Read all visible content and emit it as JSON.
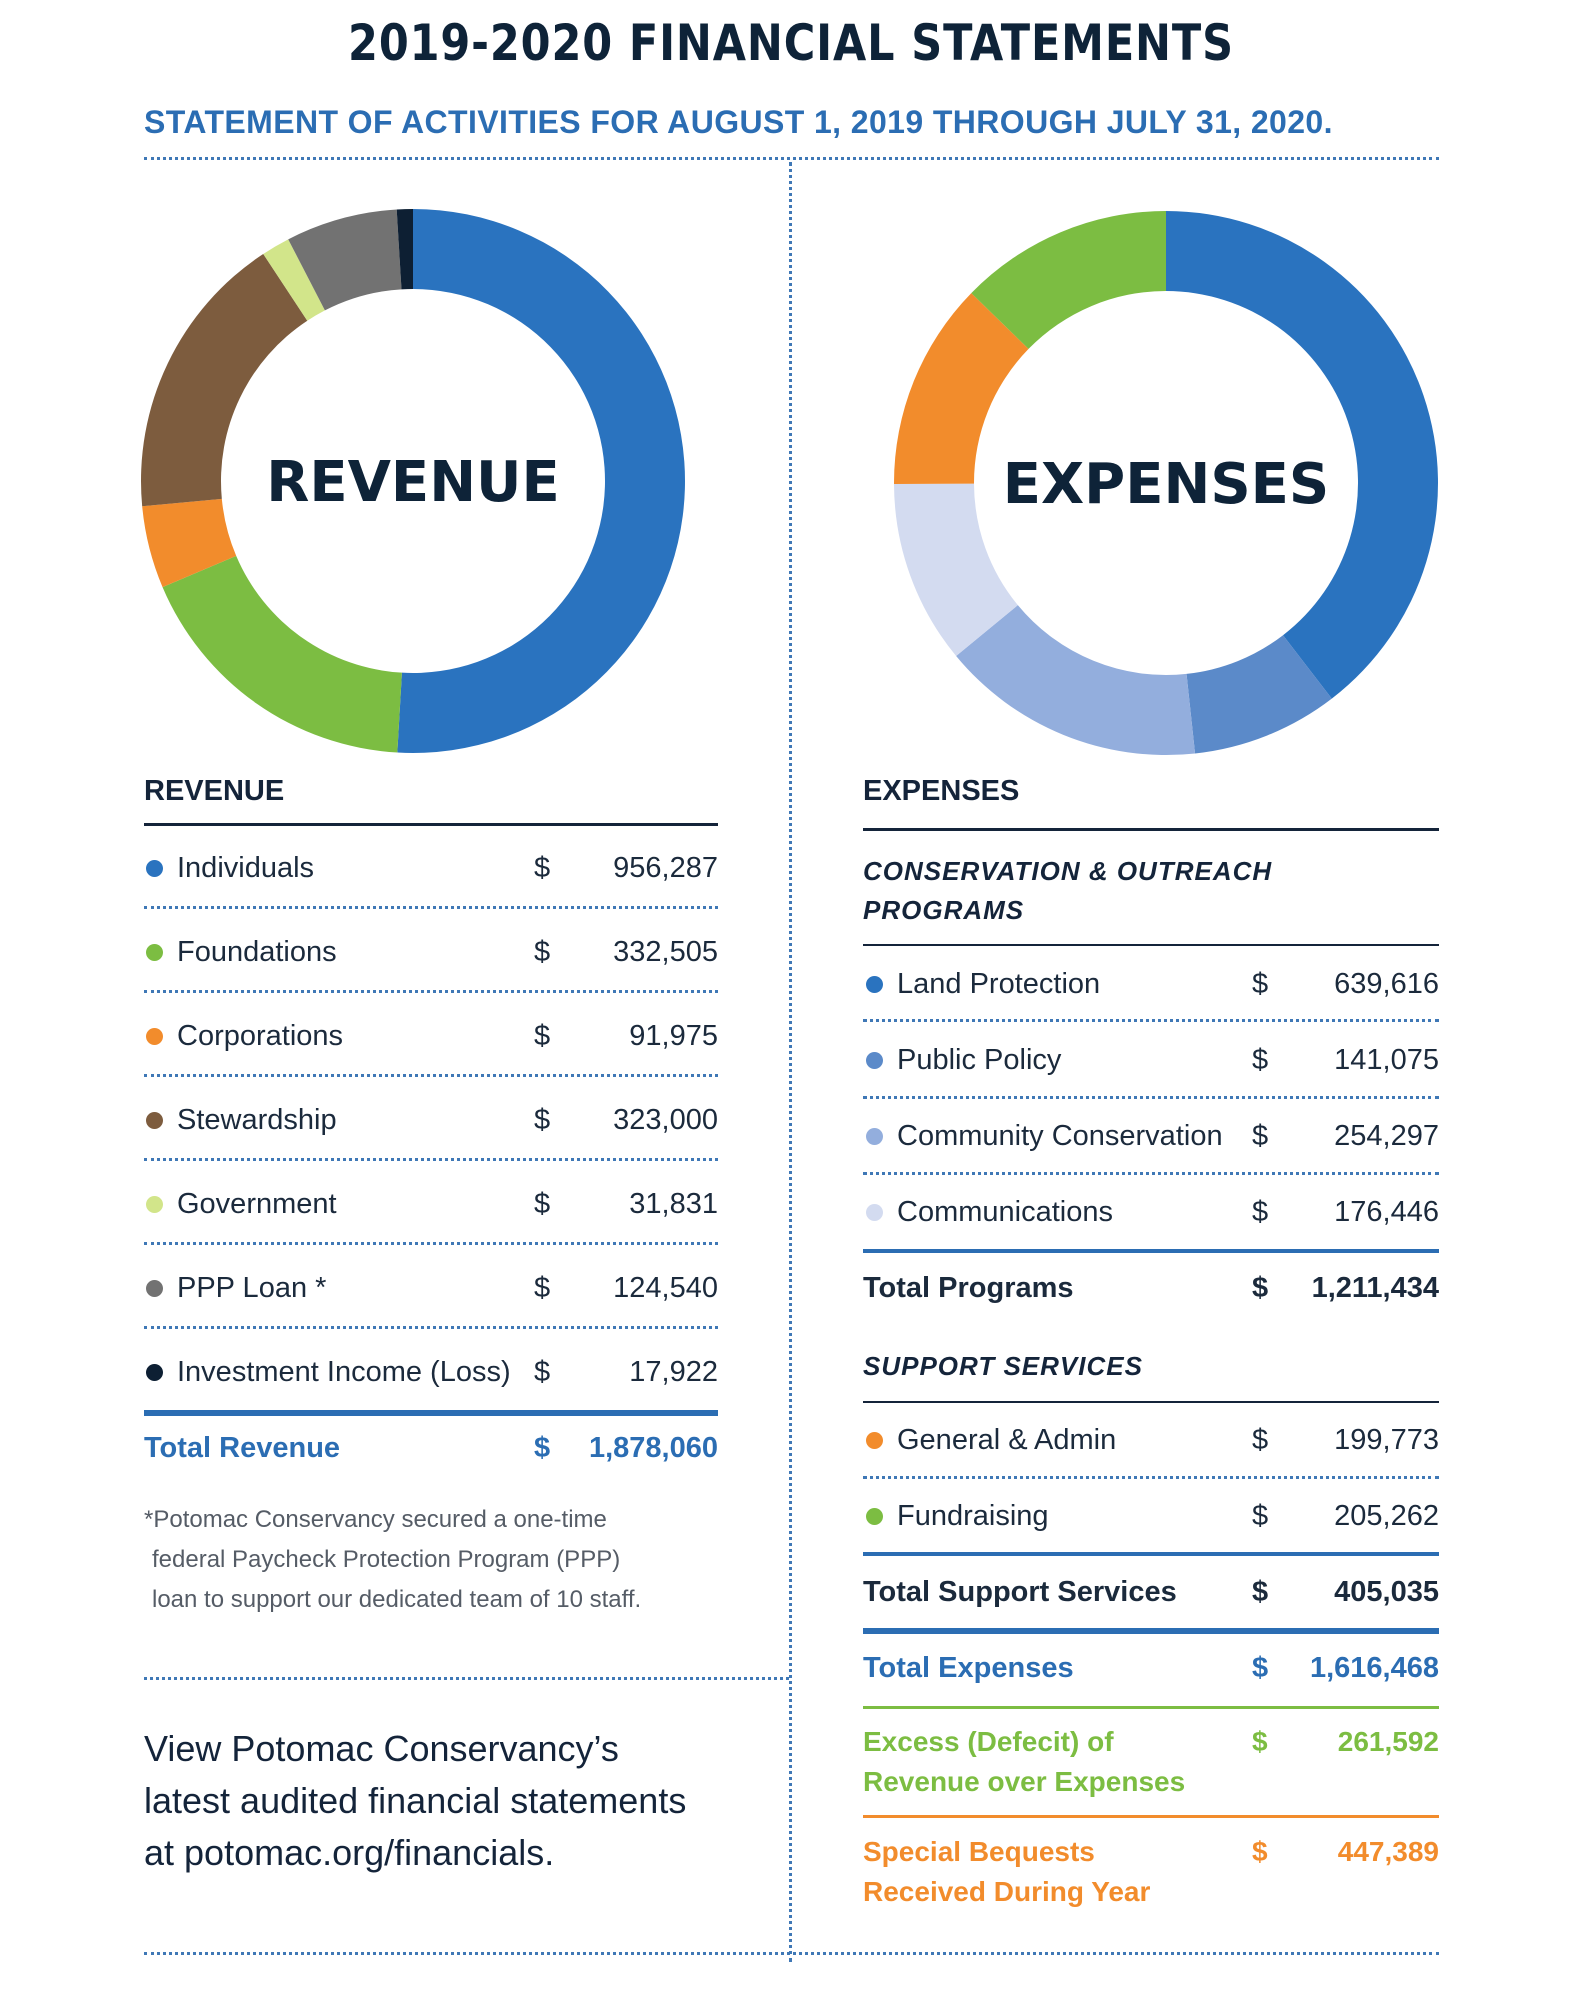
{
  "header": {
    "title": "2019-2020 FINANCIAL STATEMENTS",
    "subtitle": "STATEMENT OF ACTIVITIES FOR AUGUST 1, 2019 THROUGH JULY 31, 2020."
  },
  "chart_data": [
    {
      "type": "pie",
      "title": "REVENUE",
      "categories": [
        "Individuals",
        "Foundations",
        "Corporations",
        "Stewardship",
        "Government",
        "PPP Loan *",
        "Investment Income (Loss)"
      ],
      "values": [
        956287,
        332505,
        91975,
        323000,
        31831,
        124540,
        17922
      ],
      "colors": [
        "#2a73bf",
        "#7cbd42",
        "#f28c2c",
        "#7d5c3e",
        "#d2e58a",
        "#727272",
        "#0d1f33"
      ]
    },
    {
      "type": "pie",
      "title": "EXPENSES",
      "categories": [
        "Land Protection",
        "Public Policy",
        "Community Conservation",
        "Communications",
        "General & Admin",
        "Fundraising"
      ],
      "values": [
        639616,
        141075,
        254297,
        176446,
        199773,
        205262
      ],
      "colors": [
        "#2a73bf",
        "#5b8ac9",
        "#93aedd",
        "#d3dbf0",
        "#f28c2c",
        "#7cbd42"
      ]
    }
  ],
  "revenue": {
    "heading": "REVENUE",
    "currency": "$",
    "items": [
      {
        "label": "Individuals",
        "value": "956,287",
        "color": "#2a73bf"
      },
      {
        "label": "Foundations",
        "value": "332,505",
        "color": "#7cbd42"
      },
      {
        "label": "Corporations",
        "value": "91,975",
        "color": "#f28c2c"
      },
      {
        "label": "Stewardship",
        "value": "323,000",
        "color": "#7d5c3e"
      },
      {
        "label": "Government",
        "value": "31,831",
        "color": "#d2e58a"
      },
      {
        "label": "PPP Loan *",
        "value": "124,540",
        "color": "#727272"
      },
      {
        "label": "Investment Income (Loss)",
        "value": "17,922",
        "color": "#0d1f33"
      }
    ],
    "total_label": "Total Revenue",
    "total_value": "1,878,060",
    "note_lines": [
      "*Potomac Conservancy secured a one-time",
      "federal Paycheck Protection Program (PPP)",
      "loan to support our dedicated team of 10 staff."
    ]
  },
  "cta_lines": [
    "View Potomac Conservancy’s",
    "latest audited financial statements",
    "at potomac.org/financials."
  ],
  "expenses": {
    "heading": "EXPENSES",
    "currency": "$",
    "programs_heading_lines": [
      "CONSERVATION & OUTREACH",
      "PROGRAMS"
    ],
    "programs": [
      {
        "label": "Land Protection",
        "value": "639,616",
        "color": "#2a73bf"
      },
      {
        "label": "Public Policy",
        "value": "141,075",
        "color": "#5b8ac9"
      },
      {
        "label": "Community Conservation",
        "value": "254,297",
        "color": "#93aedd"
      },
      {
        "label": "Communications",
        "value": "176,446",
        "color": "#d3dbf0"
      }
    ],
    "total_programs_label": "Total Programs",
    "total_programs_value": "1,211,434",
    "support_heading": "SUPPORT SERVICES",
    "support": [
      {
        "label": "General & Admin",
        "value": "199,773",
        "color": "#f28c2c"
      },
      {
        "label": "Fundraising",
        "value": "205,262",
        "color": "#7cbd42"
      }
    ],
    "total_support_label": "Total Support Services",
    "total_support_value": "405,035",
    "total_expenses_label": "Total Expenses",
    "total_expenses_value": "1,616,468",
    "excess_lines": [
      "Excess (Defecit) of",
      "Revenue over Expenses"
    ],
    "excess_value": "261,592",
    "bequests_lines": [
      "Special Bequests",
      "Received During Year"
    ],
    "bequests_value": "447,389"
  },
  "colors": {
    "navy": "#0e2338",
    "blue": "#2b6db3",
    "green": "#7cbd42",
    "orange": "#f28c2c"
  }
}
